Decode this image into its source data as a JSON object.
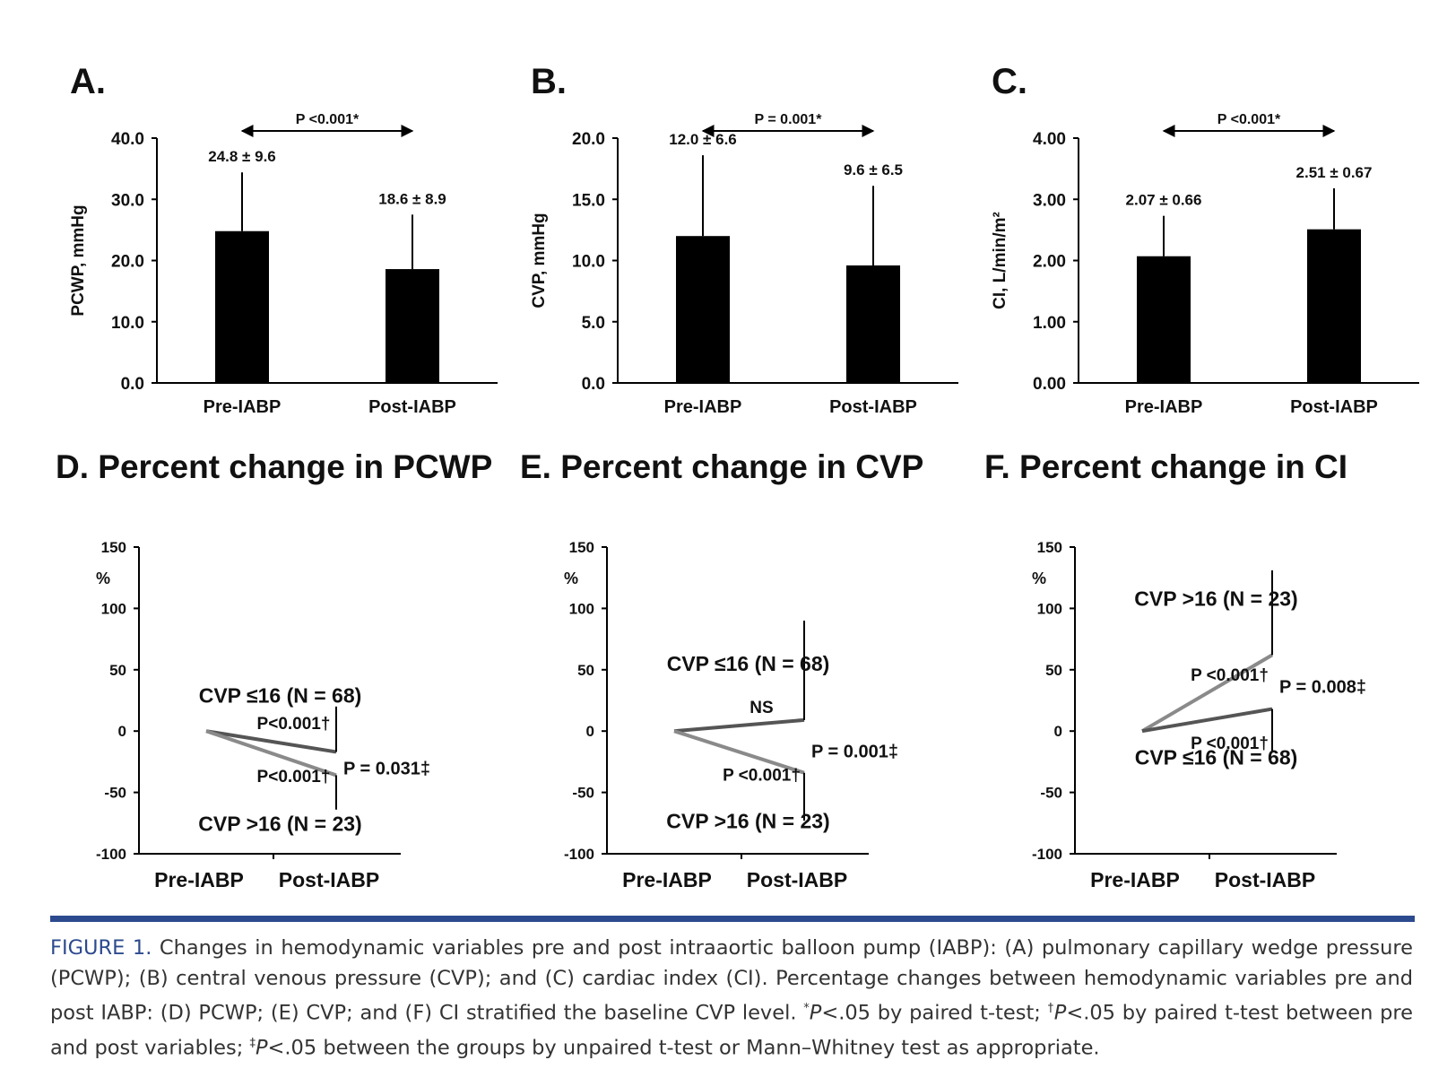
{
  "chart_data": [
    {
      "type": "bar",
      "panel": "A.",
      "ylabel": "PCWP, mmHg",
      "categories": [
        "Pre-IABP",
        "Post-IABP"
      ],
      "values": [
        24.8,
        18.6
      ],
      "errors": [
        9.6,
        8.9
      ],
      "value_labels": [
        "24.8 ± 9.6",
        "18.6 ± 8.9"
      ],
      "annotation": "P <0.001*",
      "color": "#000000",
      "ylim": [
        0,
        40
      ],
      "yticks": [
        {
          "value": 0,
          "label": "0.0"
        },
        {
          "value": 10,
          "label": "10.0"
        },
        {
          "value": 20,
          "label": "20.0"
        },
        {
          "value": 30,
          "label": "30.0"
        },
        {
          "value": 40,
          "label": "40.0"
        }
      ]
    },
    {
      "type": "bar",
      "panel": "B.",
      "ylabel": "CVP, mmHg",
      "categories": [
        "Pre-IABP",
        "Post-IABP"
      ],
      "values": [
        12,
        9.6
      ],
      "errors": [
        6.6,
        6.5
      ],
      "value_labels": [
        "12.0 ± 6.6",
        "9.6 ± 6.5"
      ],
      "annotation": "P = 0.001*",
      "color": "#000000",
      "ylim": [
        0,
        20
      ],
      "yticks": [
        {
          "value": 0,
          "label": "0.0"
        },
        {
          "value": 5,
          "label": "5.0"
        },
        {
          "value": 10,
          "label": "10.0"
        },
        {
          "value": 15,
          "label": "15.0"
        },
        {
          "value": 20,
          "label": "20.0"
        }
      ]
    },
    {
      "type": "bar",
      "panel": "C.",
      "ylabel": "CI, L/min/m²",
      "categories": [
        "Pre-IABP",
        "Post-IABP"
      ],
      "values": [
        2.07,
        2.51
      ],
      "errors": [
        0.66,
        0.67
      ],
      "value_labels": [
        "2.07 ± 0.66",
        "2.51 ± 0.67"
      ],
      "annotation": "P <0.001*",
      "color": "#000000",
      "ylim": [
        0,
        4
      ],
      "yticks": [
        {
          "value": 0,
          "label": "0.00"
        },
        {
          "value": 1,
          "label": "1.00"
        },
        {
          "value": 2,
          "label": "2.00"
        },
        {
          "value": 3,
          "label": "3.00"
        },
        {
          "value": 4,
          "label": "4.00"
        }
      ]
    },
    {
      "type": "line",
      "title": "D. Percent change in PCWP",
      "ylabel": "%",
      "categories": [
        "Pre-IABP",
        "Post-IABP"
      ],
      "annotation": "P = 0.031‡",
      "series": [
        {
          "name": "CVP ≤16 (N = 68)",
          "color": "#555555",
          "values": [
            0,
            -17
          ],
          "errors": [
            null,
            37
          ],
          "annotation": "P<0.001†"
        },
        {
          "name": "CVP >16 (N = 23)",
          "color": "#8a8a8a",
          "values": [
            0,
            -36
          ],
          "errors": [
            null,
            28
          ],
          "annotation": "P<0.001†"
        }
      ],
      "ylim": [
        -100,
        150
      ],
      "yticks": [
        -100,
        -50,
        0,
        50,
        100,
        150
      ]
    },
    {
      "type": "line",
      "title": "E. Percent change in CVP",
      "ylabel": "%",
      "categories": [
        "Pre-IABP",
        "Post-IABP"
      ],
      "annotation": "P = 0.001‡",
      "series": [
        {
          "name": "CVP ≤16 (N = 68)",
          "color": "#555555",
          "values": [
            0,
            9
          ],
          "errors": [
            null,
            81
          ],
          "annotation": "NS"
        },
        {
          "name": "CVP >16 (N = 23)",
          "color": "#8a8a8a",
          "values": [
            0,
            -34
          ],
          "errors": [
            null,
            39
          ],
          "annotation": "P <0.001†"
        }
      ],
      "ylim": [
        -100,
        150
      ],
      "yticks": [
        -100,
        -50,
        0,
        50,
        100,
        150
      ]
    },
    {
      "type": "line",
      "title": "F. Percent change in CI",
      "ylabel": "%",
      "categories": [
        "Pre-IABP",
        "Post-IABP"
      ],
      "annotation": "P = 0.008‡",
      "series": [
        {
          "name": "CVP >16 (N = 23)",
          "color": "#8a8a8a",
          "values": [
            0,
            62
          ],
          "errors": [
            null,
            69
          ],
          "annotation": "P <0.001†"
        },
        {
          "name": "CVP ≤16 (N = 68)",
          "color": "#555555",
          "values": [
            0,
            18
          ],
          "errors": [
            null,
            34
          ],
          "annotation": "P <0.001†"
        }
      ],
      "ylim": [
        -100,
        150
      ],
      "yticks": [
        -100,
        -50,
        0,
        50,
        100,
        150
      ]
    }
  ],
  "caption": {
    "label": "FIGURE 1.",
    "parts": [
      " Changes in hemodynamic variables pre and post intraaortic balloon pump (IABP): (A) pulmonary capillary wedge pressure (PCWP); (B) central venous pressure (CVP); and (C) cardiac index (CI). Percentage changes between hemodynamic variables pre and post IABP: (D) PCWP; (E) CVP; and (F) CI stratified the baseline CVP level. ",
      "*",
      "P",
      "<.05 by paired t-test; ",
      "†",
      "P",
      "<.05 by paired t-test between pre and post variables; ",
      "‡",
      "P",
      "<.05 between the groups by unpaired t-test or Mann–Whitney test as appropriate."
    ]
  }
}
